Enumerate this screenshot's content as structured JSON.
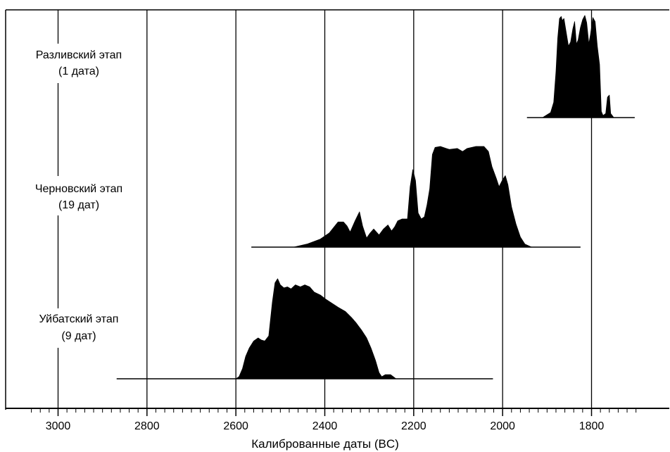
{
  "header": {
    "cut_text": ""
  },
  "chart_data": {
    "type": "area",
    "xlabel": "Калиброванные даты (BC)",
    "x_reversed": true,
    "xlim": [
      3060,
      1700
    ],
    "x_ticks": [
      3000,
      2800,
      2600,
      2400,
      2200,
      2000,
      1800
    ],
    "x_tick_labels": [
      "3000",
      "2800",
      "2600",
      "2400",
      "2200",
      "2000",
      "1800"
    ],
    "x_minor_step": 20,
    "gridlines_at": [
      3000,
      2800,
      2600,
      2400,
      2200,
      2000,
      1800
    ],
    "fill_color": "#000000",
    "series": [
      {
        "label_lines": [
          "Разливский этап",
          "(1 дата)"
        ],
        "baseline_range": [
          1945,
          1703
        ],
        "density": [
          [
            1945,
            0
          ],
          [
            1910,
            0.0
          ],
          [
            1892,
            0.05
          ],
          [
            1885,
            0.15
          ],
          [
            1880,
            0.45
          ],
          [
            1876,
            0.78
          ],
          [
            1872,
            0.97
          ],
          [
            1868,
            0.99
          ],
          [
            1866,
            0.95
          ],
          [
            1862,
            0.97
          ],
          [
            1858,
            0.86
          ],
          [
            1852,
            0.7
          ],
          [
            1847,
            0.74
          ],
          [
            1842,
            0.87
          ],
          [
            1838,
            0.94
          ],
          [
            1834,
            0.72
          ],
          [
            1830,
            0.76
          ],
          [
            1825,
            0.88
          ],
          [
            1820,
            0.96
          ],
          [
            1815,
            1.0
          ],
          [
            1811,
            0.93
          ],
          [
            1806,
            0.72
          ],
          [
            1802,
            0.82
          ],
          [
            1797,
            0.98
          ],
          [
            1792,
            0.94
          ],
          [
            1787,
            0.7
          ],
          [
            1782,
            0.52
          ],
          [
            1778,
            0.06
          ],
          [
            1774,
            0.02
          ],
          [
            1768,
            0.04
          ],
          [
            1764,
            0.2
          ],
          [
            1760,
            0.22
          ],
          [
            1757,
            0.04
          ],
          [
            1750,
            0.0
          ],
          [
            1703,
            0
          ]
        ]
      },
      {
        "label_lines": [
          "Черновский этап",
          "(19 дат)"
        ],
        "baseline_range": [
          2565,
          1825
        ],
        "density": [
          [
            2565,
            0
          ],
          [
            2470,
            0.0
          ],
          [
            2440,
            0.03
          ],
          [
            2410,
            0.08
          ],
          [
            2390,
            0.14
          ],
          [
            2370,
            0.25
          ],
          [
            2358,
            0.25
          ],
          [
            2350,
            0.21
          ],
          [
            2343,
            0.15
          ],
          [
            2332,
            0.26
          ],
          [
            2322,
            0.35
          ],
          [
            2315,
            0.21
          ],
          [
            2306,
            0.09
          ],
          [
            2298,
            0.14
          ],
          [
            2290,
            0.18
          ],
          [
            2278,
            0.12
          ],
          [
            2268,
            0.18
          ],
          [
            2258,
            0.22
          ],
          [
            2250,
            0.16
          ],
          [
            2243,
            0.2
          ],
          [
            2236,
            0.26
          ],
          [
            2226,
            0.28
          ],
          [
            2214,
            0.28
          ],
          [
            2208,
            0.6
          ],
          [
            2202,
            0.77
          ],
          [
            2196,
            0.66
          ],
          [
            2190,
            0.34
          ],
          [
            2183,
            0.28
          ],
          [
            2176,
            0.3
          ],
          [
            2170,
            0.42
          ],
          [
            2164,
            0.58
          ],
          [
            2158,
            0.92
          ],
          [
            2152,
            0.99
          ],
          [
            2140,
            1.0
          ],
          [
            2120,
            0.97
          ],
          [
            2102,
            0.98
          ],
          [
            2090,
            0.95
          ],
          [
            2080,
            0.98
          ],
          [
            2060,
            1.0
          ],
          [
            2042,
            1.0
          ],
          [
            2032,
            0.95
          ],
          [
            2024,
            0.8
          ],
          [
            2014,
            0.68
          ],
          [
            2008,
            0.6
          ],
          [
            2000,
            0.67
          ],
          [
            1994,
            0.71
          ],
          [
            1988,
            0.62
          ],
          [
            1980,
            0.4
          ],
          [
            1970,
            0.23
          ],
          [
            1960,
            0.1
          ],
          [
            1950,
            0.03
          ],
          [
            1935,
            0.0
          ],
          [
            1825,
            0
          ]
        ]
      },
      {
        "label_lines": [
          "Уйбатский этап",
          "(9 дат)"
        ],
        "baseline_range": [
          2868,
          2022
        ],
        "density": [
          [
            2868,
            0
          ],
          [
            2600,
            0.0
          ],
          [
            2593,
            0.02
          ],
          [
            2585,
            0.1
          ],
          [
            2578,
            0.22
          ],
          [
            2570,
            0.3
          ],
          [
            2560,
            0.37
          ],
          [
            2550,
            0.4
          ],
          [
            2543,
            0.38
          ],
          [
            2535,
            0.37
          ],
          [
            2526,
            0.42
          ],
          [
            2518,
            0.75
          ],
          [
            2512,
            0.94
          ],
          [
            2506,
            0.98
          ],
          [
            2500,
            0.92
          ],
          [
            2492,
            0.89
          ],
          [
            2484,
            0.9
          ],
          [
            2476,
            0.88
          ],
          [
            2466,
            0.92
          ],
          [
            2455,
            0.9
          ],
          [
            2445,
            0.92
          ],
          [
            2434,
            0.9
          ],
          [
            2424,
            0.85
          ],
          [
            2410,
            0.82
          ],
          [
            2398,
            0.78
          ],
          [
            2384,
            0.74
          ],
          [
            2370,
            0.7
          ],
          [
            2354,
            0.66
          ],
          [
            2340,
            0.6
          ],
          [
            2330,
            0.55
          ],
          [
            2318,
            0.48
          ],
          [
            2306,
            0.4
          ],
          [
            2296,
            0.3
          ],
          [
            2286,
            0.18
          ],
          [
            2278,
            0.06
          ],
          [
            2272,
            0.02
          ],
          [
            2264,
            0.04
          ],
          [
            2252,
            0.04
          ],
          [
            2240,
            0.0
          ],
          [
            2022,
            0
          ]
        ]
      }
    ]
  }
}
